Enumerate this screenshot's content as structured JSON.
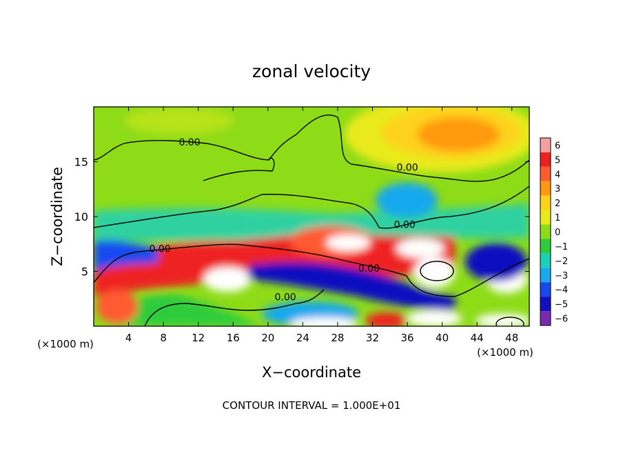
{
  "chart_data": {
    "type": "heatmap",
    "title": "zonal velocity",
    "xlabel": "X−coordinate",
    "ylabel": "Z−coordinate",
    "x_unit_left": "(×1000 m)",
    "x_unit_right": "(×1000 m)",
    "footer": "CONTOUR INTERVAL = 1.000E+01",
    "xlim": [
      0,
      50
    ],
    "ylim": [
      0,
      20
    ],
    "x_ticks": [
      4,
      8,
      12,
      16,
      20,
      24,
      28,
      32,
      36,
      40,
      44,
      48
    ],
    "y_ticks": [
      5,
      10,
      15
    ],
    "colorbar": {
      "levels": [
        6,
        5,
        4,
        3,
        2,
        1,
        0,
        -1,
        -2,
        -3,
        -4,
        -5,
        -6
      ],
      "colors": [
        "#f4a0a0",
        "#ee2020",
        "#ff5a30",
        "#ff9a10",
        "#ffd21a",
        "#e8ea1a",
        "#8edc18",
        "#2ecc3c",
        "#1ecfb8",
        "#18a8ee",
        "#1848f0",
        "#1010c0",
        "#7a2ab0"
      ],
      "labels": [
        "6",
        "5",
        "4",
        "3",
        "2",
        "1",
        "0",
        "−1",
        "−2",
        "−3",
        "−4",
        "−5",
        "−6"
      ]
    },
    "contour_labels": [
      {
        "text": "0.00",
        "x": 11.0,
        "z": 16.6
      },
      {
        "text": "0.00",
        "x": 36.0,
        "z": 14.3
      },
      {
        "text": "0.00",
        "x": 35.7,
        "z": 9.1
      },
      {
        "text": "0.00",
        "x": 7.6,
        "z": 6.9
      },
      {
        "text": "0.00",
        "x": 31.6,
        "z": 5.1
      },
      {
        "text": "0.00",
        "x": 22.0,
        "z": 2.5
      }
    ]
  }
}
